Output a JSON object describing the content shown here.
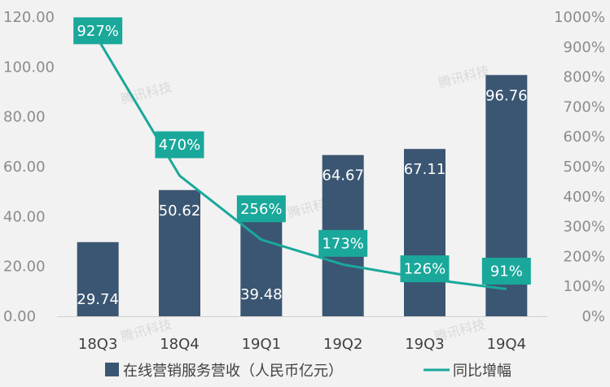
{
  "chart_data": {
    "type": "bar",
    "categories": [
      "18Q3",
      "18Q4",
      "19Q1",
      "19Q2",
      "19Q3",
      "19Q4"
    ],
    "series": [
      {
        "name": "在线营销服务营收（人民币亿元）",
        "type": "bar",
        "axis": "left",
        "color": "#3b5672",
        "values": [
          29.74,
          50.62,
          39.48,
          64.67,
          67.11,
          96.76
        ],
        "labels": [
          "29.74",
          "50.62",
          "39.48",
          "64.67",
          "67.11",
          "96.76"
        ]
      },
      {
        "name": "同比增幅",
        "type": "line",
        "axis": "right",
        "color": "#1aa89b",
        "values": [
          927,
          470,
          256,
          173,
          126,
          91
        ],
        "labels": [
          "927%",
          "470%",
          "256%",
          "173%",
          "126%",
          "91%"
        ]
      }
    ],
    "y_left": {
      "min": 0,
      "max": 120,
      "ticks": [
        "0.00",
        "20.00",
        "40.00",
        "60.00",
        "80.00",
        "100.00",
        "120.00"
      ]
    },
    "y_right": {
      "min": 0,
      "max": 1000,
      "ticks": [
        "0%",
        "100%",
        "200%",
        "300%",
        "400%",
        "500%",
        "600%",
        "700%",
        "800%",
        "900%",
        "1000%"
      ]
    },
    "grid": false,
    "legend_position": "bottom"
  },
  "watermark": "腾讯科技",
  "colors": {
    "background": "#f2f2f2",
    "bar": "#3b5672",
    "line": "#1aa89b"
  }
}
